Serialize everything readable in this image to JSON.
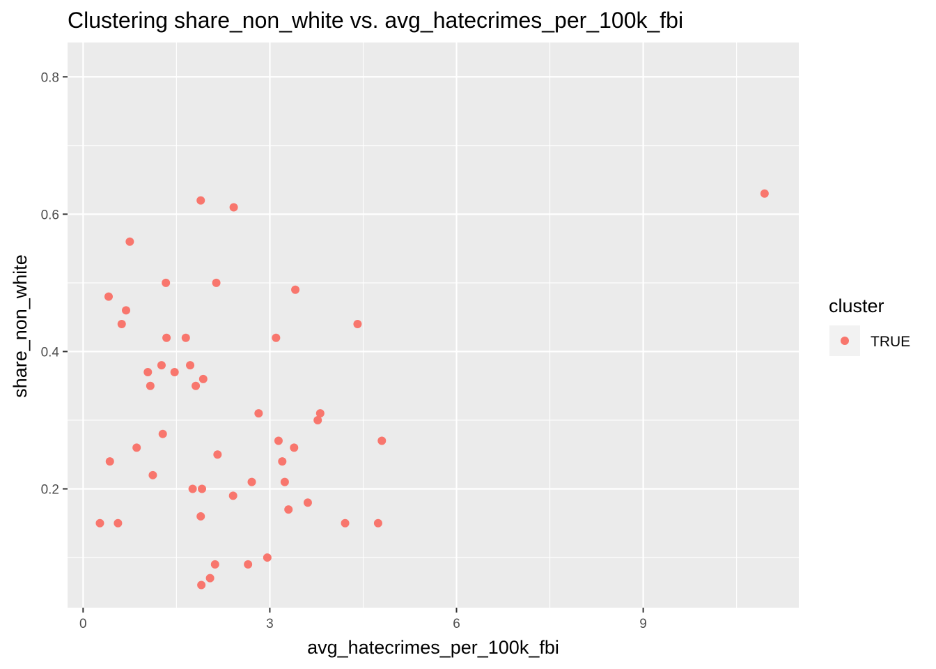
{
  "chart_data": {
    "type": "scatter",
    "title": "Clustering share_non_white vs. avg_hatecrimes_per_100k_fbi",
    "xlabel": "avg_hatecrimes_per_100k_fbi",
    "ylabel": "share_non_white",
    "xlim": [
      -0.25,
      11.5
    ],
    "ylim": [
      0.027,
      0.85
    ],
    "x_ticks": [
      0,
      3,
      6,
      9
    ],
    "x_tick_labels": [
      "0",
      "3",
      "6",
      "9"
    ],
    "y_ticks": [
      0.2,
      0.4,
      0.6,
      0.8
    ],
    "y_tick_labels": [
      "0.2",
      "0.4",
      "0.6",
      "0.8"
    ],
    "grid": true,
    "legend": {
      "title": "cluster",
      "placement": "right",
      "entries": [
        "TRUE"
      ]
    },
    "series": [
      {
        "name": "TRUE",
        "color": "#F8766D",
        "points": [
          [
            1.89,
            0.62
          ],
          [
            2.42,
            0.61
          ],
          [
            10.95,
            0.63
          ],
          [
            0.75,
            0.56
          ],
          [
            1.33,
            0.5
          ],
          [
            2.14,
            0.5
          ],
          [
            0.41,
            0.48
          ],
          [
            3.41,
            0.49
          ],
          [
            0.69,
            0.46
          ],
          [
            0.62,
            0.44
          ],
          [
            4.41,
            0.44
          ],
          [
            1.34,
            0.42
          ],
          [
            1.65,
            0.42
          ],
          [
            3.1,
            0.42
          ],
          [
            1.26,
            0.38
          ],
          [
            1.72,
            0.38
          ],
          [
            1.04,
            0.37
          ],
          [
            1.47,
            0.37
          ],
          [
            1.93,
            0.36
          ],
          [
            1.08,
            0.35
          ],
          [
            1.81,
            0.35
          ],
          [
            2.82,
            0.31
          ],
          [
            3.81,
            0.31
          ],
          [
            3.77,
            0.3
          ],
          [
            1.28,
            0.28
          ],
          [
            3.14,
            0.27
          ],
          [
            4.8,
            0.27
          ],
          [
            0.86,
            0.26
          ],
          [
            3.39,
            0.26
          ],
          [
            2.16,
            0.25
          ],
          [
            0.43,
            0.24
          ],
          [
            3.2,
            0.24
          ],
          [
            1.12,
            0.22
          ],
          [
            2.71,
            0.21
          ],
          [
            3.24,
            0.21
          ],
          [
            1.76,
            0.2
          ],
          [
            1.91,
            0.2
          ],
          [
            2.41,
            0.19
          ],
          [
            3.61,
            0.18
          ],
          [
            3.3,
            0.17
          ],
          [
            1.89,
            0.16
          ],
          [
            0.27,
            0.15
          ],
          [
            0.56,
            0.15
          ],
          [
            4.21,
            0.15
          ],
          [
            4.74,
            0.15
          ],
          [
            2.96,
            0.1
          ],
          [
            2.12,
            0.09
          ],
          [
            2.65,
            0.09
          ],
          [
            2.04,
            0.07
          ],
          [
            1.9,
            0.06
          ]
        ]
      }
    ]
  }
}
